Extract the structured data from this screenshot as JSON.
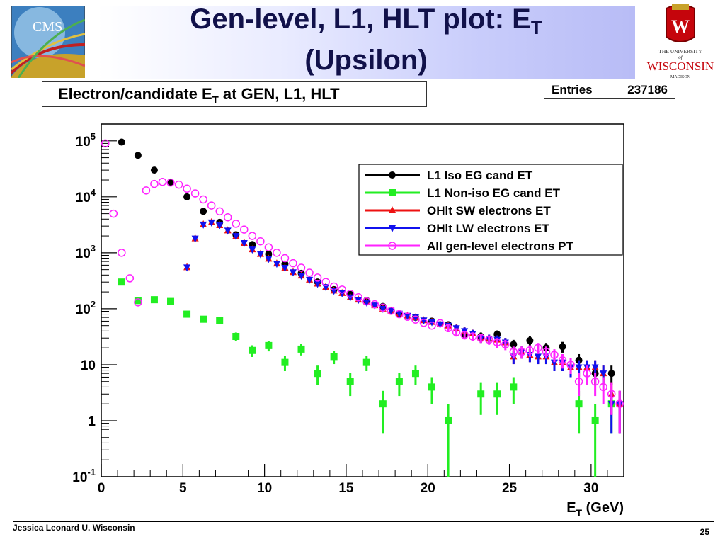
{
  "slide": {
    "title_line1": "Gen-level, L1, HLT plot: E",
    "title_sub": "T",
    "title_line2": "(Upsilon)",
    "logo_left_text": "CMS",
    "logo_right_line1": "THE UNIVERSITY",
    "logo_right_line2": "of",
    "logo_right_line3": "WISCONSIN",
    "logo_right_line4": "MADISON",
    "footer_left": "Jessica Leonard U. Wisconsin",
    "page_number": "25"
  },
  "chart_data": {
    "type": "scatter",
    "title_main": "Electron/candidate E",
    "title_sub": "T",
    "title_rest": " at GEN, L1, HLT",
    "stats_label": "Entries",
    "stats_value": "237186",
    "xlabel_main": "E",
    "xlabel_sub": "T",
    "xlabel_rest": " (GeV)",
    "ylabel": "",
    "x_scale": "linear",
    "y_scale": "log",
    "xlim": [
      0,
      32
    ],
    "ylim": [
      0.1,
      200000
    ],
    "x_ticks": [
      "0",
      "5",
      "10",
      "15",
      "20",
      "25",
      "30"
    ],
    "y_ticks": [
      {
        "v": 0.1,
        "base": "10",
        "exp": "-1"
      },
      {
        "v": 1,
        "base": "1",
        "exp": ""
      },
      {
        "v": 10,
        "base": "10",
        "exp": ""
      },
      {
        "v": 100,
        "base": "10",
        "exp": "2"
      },
      {
        "v": 1000,
        "base": "10",
        "exp": "3"
      },
      {
        "v": 10000,
        "base": "10",
        "exp": "4"
      },
      {
        "v": 100000,
        "base": "10",
        "exp": "5"
      }
    ],
    "legend_position": "top-right",
    "grid": false,
    "series": [
      {
        "name": "L1 Iso EG cand ET",
        "color": "#000000",
        "marker": "circle-filled",
        "x": [
          1.25,
          2.25,
          3.25,
          4.25,
          5.25,
          6.25,
          7.25,
          8.25,
          9.25,
          10.25,
          11.25,
          12.25,
          13.25,
          14.25,
          15.25,
          16.25,
          17.25,
          18.25,
          19.25,
          20.25,
          21.25,
          22.25,
          23.25,
          24.25,
          25.25,
          26.25,
          27.25,
          28.25,
          29.25,
          30.25,
          31.25
        ],
        "y": [
          95000,
          55000,
          30000,
          18000,
          10000,
          5500,
          3500,
          2100,
          1400,
          950,
          630,
          430,
          300,
          220,
          180,
          140,
          110,
          80,
          70,
          60,
          52,
          35,
          32,
          35,
          23,
          27,
          20,
          21,
          12,
          7,
          7
        ]
      },
      {
        "name": "L1 Non-iso EG cand ET",
        "color": "#22ee22",
        "marker": "square-filled",
        "x": [
          1.25,
          2.25,
          3.25,
          4.25,
          5.25,
          6.25,
          7.25,
          8.25,
          9.25,
          10.25,
          11.25,
          12.25,
          13.25,
          14.25,
          15.25,
          16.25,
          17.25,
          18.25,
          19.25,
          20.25,
          21.25,
          23.25,
          24.25,
          25.25,
          29.25,
          30.25,
          31.25
        ],
        "y": [
          300,
          140,
          145,
          135,
          80,
          65,
          62,
          32,
          18,
          22,
          11,
          19,
          7,
          14,
          5,
          11,
          2,
          5,
          7,
          4,
          1,
          3,
          3,
          4,
          2,
          1,
          2
        ]
      },
      {
        "name": "OHlt SW electrons ET",
        "color": "#ee1111",
        "marker": "triangle-up",
        "x": [
          5.25,
          5.75,
          6.25,
          6.75,
          7.25,
          7.75,
          8.25,
          8.75,
          9.25,
          9.75,
          10.25,
          10.75,
          11.25,
          11.75,
          12.25,
          12.75,
          13.25,
          13.75,
          14.25,
          14.75,
          15.25,
          15.75,
          16.25,
          16.75,
          17.25,
          17.75,
          18.25,
          18.75,
          19.25,
          19.75,
          20.25,
          20.75,
          21.25,
          21.75,
          22.25,
          22.75,
          23.25,
          23.75,
          24.25,
          24.75,
          25.25,
          25.75,
          26.25,
          26.75,
          27.25,
          27.75,
          28.25,
          28.75,
          29.25,
          29.75,
          30.25,
          30.75,
          31.25,
          31.75
        ],
        "y": [
          550,
          1800,
          3200,
          3500,
          3100,
          2500,
          2000,
          1500,
          1150,
          950,
          780,
          640,
          540,
          450,
          390,
          330,
          280,
          245,
          210,
          190,
          160,
          145,
          130,
          115,
          100,
          92,
          82,
          75,
          70,
          62,
          58,
          53,
          50,
          45,
          40,
          36,
          30,
          29,
          28,
          25,
          14,
          17,
          15,
          14,
          14,
          11,
          11,
          9,
          9,
          9,
          9,
          7,
          3,
          2
        ]
      },
      {
        "name": "OHlt LW electrons ET",
        "color": "#1111ee",
        "marker": "triangle-down",
        "x": [
          5.25,
          5.75,
          6.25,
          6.75,
          7.25,
          7.75,
          8.25,
          8.75,
          9.25,
          9.75,
          10.25,
          10.75,
          11.25,
          11.75,
          12.25,
          12.75,
          13.25,
          13.75,
          14.25,
          14.75,
          15.25,
          15.75,
          16.25,
          16.75,
          17.25,
          17.75,
          18.25,
          18.75,
          19.25,
          19.75,
          20.25,
          20.75,
          21.25,
          21.75,
          22.25,
          22.75,
          23.25,
          23.75,
          24.25,
          24.75,
          25.25,
          25.75,
          26.25,
          26.75,
          27.25,
          27.75,
          28.25,
          28.75,
          29.25,
          29.75,
          30.25,
          30.75,
          31.25,
          31.75
        ],
        "y": [
          550,
          1800,
          3200,
          3500,
          3100,
          2500,
          2000,
          1500,
          1150,
          950,
          780,
          640,
          540,
          450,
          390,
          330,
          280,
          245,
          210,
          190,
          160,
          145,
          130,
          115,
          100,
          92,
          82,
          75,
          70,
          62,
          58,
          53,
          50,
          45,
          40,
          36,
          30,
          29,
          28,
          25,
          14,
          17,
          15,
          14,
          14,
          11,
          11,
          9,
          9,
          9,
          9,
          7,
          2,
          2
        ]
      },
      {
        "name": "All gen-level electrons PT",
        "color": "#ff22ff",
        "marker": "circle-open",
        "x": [
          0.25,
          0.75,
          1.25,
          1.75,
          2.25,
          2.75,
          3.25,
          3.75,
          4.25,
          4.75,
          5.25,
          5.75,
          6.25,
          6.75,
          7.25,
          7.75,
          8.25,
          8.75,
          9.25,
          9.75,
          10.25,
          10.75,
          11.25,
          11.75,
          12.25,
          12.75,
          13.25,
          13.75,
          14.25,
          14.75,
          15.25,
          15.75,
          16.25,
          16.75,
          17.25,
          17.75,
          18.25,
          18.75,
          19.25,
          19.75,
          20.25,
          20.75,
          21.25,
          21.75,
          22.25,
          22.75,
          23.25,
          23.75,
          24.25,
          24.75,
          25.25,
          25.75,
          26.25,
          26.75,
          27.25,
          27.75,
          28.25,
          28.75,
          29.25,
          29.75,
          30.25,
          30.75,
          31.25,
          31.75
        ],
        "y": [
          90000,
          5000,
          1000,
          350,
          130,
          13000,
          17000,
          18500,
          18000,
          16500,
          14000,
          11500,
          9000,
          7000,
          5500,
          4300,
          3300,
          2600,
          2000,
          1600,
          1250,
          1000,
          800,
          650,
          540,
          440,
          360,
          300,
          250,
          220,
          185,
          160,
          135,
          120,
          105,
          92,
          80,
          72,
          64,
          56,
          50,
          55,
          45,
          38,
          34,
          32,
          30,
          28,
          25,
          23,
          17,
          17,
          18,
          20,
          17,
          15,
          12,
          10,
          5,
          7,
          5,
          4,
          3,
          2
        ]
      }
    ]
  }
}
